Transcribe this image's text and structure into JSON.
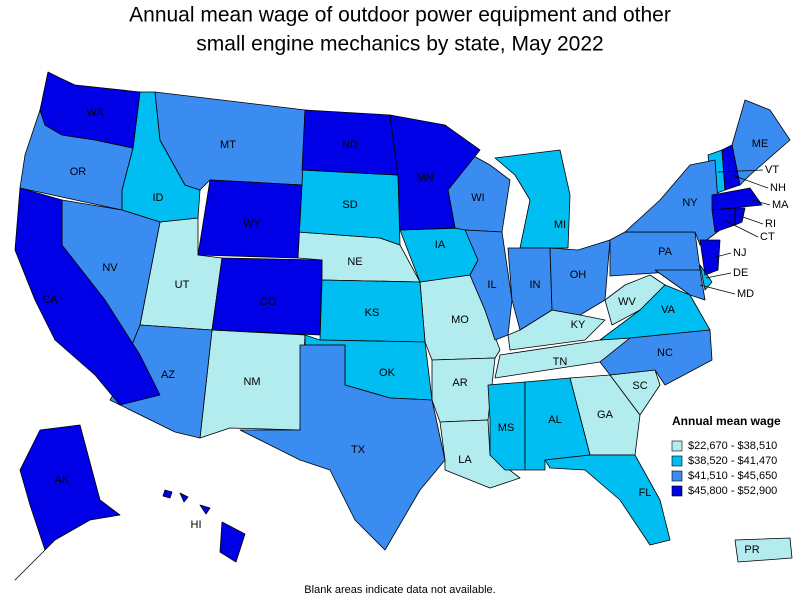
{
  "title": [
    "Annual mean wage of outdoor power equipment and other",
    "small engine mechanics by state, May 2022"
  ],
  "legend": {
    "title": "Annual mean wage",
    "items": [
      {
        "label": "$22,670 - $38,510",
        "color": "#b3ecef",
        "states": [
          "UT",
          "NM",
          "NE",
          "MO",
          "AR",
          "LA",
          "KY",
          "TN",
          "WV",
          "GA",
          "SC",
          "PR"
        ]
      },
      {
        "label": "$38,520 - $41,470",
        "color": "#00bdf2",
        "states": [
          "ID",
          "SD",
          "KS",
          "OK",
          "IA",
          "MI",
          "VA",
          "MS",
          "AL",
          "FL",
          "VT",
          "DE"
        ]
      },
      {
        "label": "$41,510 - $45,650",
        "color": "#3a8cf0",
        "states": [
          "OR",
          "MT",
          "NV",
          "AZ",
          "TX",
          "WI",
          "IL",
          "IN",
          "OH",
          "PA",
          "NY",
          "ME",
          "NC",
          "MD"
        ]
      },
      {
        "label": "$45,800 - $52,900",
        "color": "#0000e6",
        "states": [
          "WA",
          "ND",
          "MN",
          "WY",
          "CO",
          "CA",
          "AK",
          "HI",
          "NJ",
          "NH",
          "MA",
          "CT",
          "RI"
        ]
      }
    ]
  },
  "note": "Blank areas indicate data not available."
}
